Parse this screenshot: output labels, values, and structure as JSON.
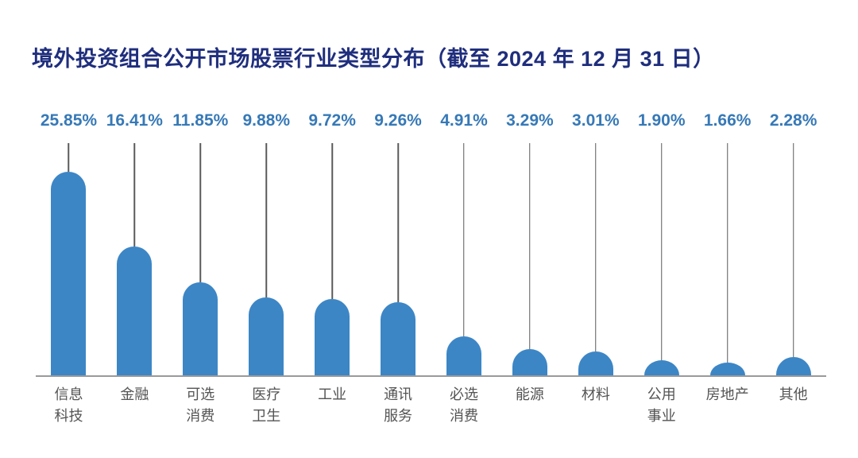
{
  "colors": {
    "title": "#1f2e7d",
    "value_label": "#3679b7",
    "bar": "#3c86c6",
    "stem": "#5a5a5a",
    "axis": "#9a9a9a",
    "category_label": "#545454",
    "background": "#ffffff"
  },
  "chart_data": {
    "type": "bar",
    "title": "境外投资组合公开市场股票行业类型分布（截至 2024 年 12 月 31 日）",
    "categories": [
      "信息科技",
      "金融",
      "可选消费",
      "医疗卫生",
      "工业",
      "通讯服务",
      "必选消费",
      "能源",
      "材料",
      "公用事业",
      "房地产",
      "其他"
    ],
    "category_display_lines": [
      "信息\n科技",
      "金融",
      "可选\n消费",
      "医疗\n卫生",
      "工业",
      "通讯\n服务",
      "必选\n消费",
      "能源",
      "材料",
      "公用\n事业",
      "房地产",
      "其他"
    ],
    "values": [
      25.85,
      16.41,
      11.85,
      9.88,
      9.72,
      9.26,
      4.91,
      3.29,
      3.01,
      1.9,
      1.66,
      2.28
    ],
    "value_labels": [
      "25.85%",
      "16.41%",
      "11.85%",
      "9.88%",
      "9.72%",
      "9.26%",
      "4.91%",
      "3.29%",
      "3.01%",
      "1.90%",
      "1.66%",
      "2.28%"
    ],
    "unit": "%",
    "xlabel": "",
    "ylabel": "",
    "ylim": [
      0,
      26
    ],
    "grid": false,
    "legend": false,
    "bar_style": "rounded-top lollipop with stem lines from value labels to bar tops",
    "value_label_position": "above stems",
    "baseline": "gray horizontal axis line"
  }
}
